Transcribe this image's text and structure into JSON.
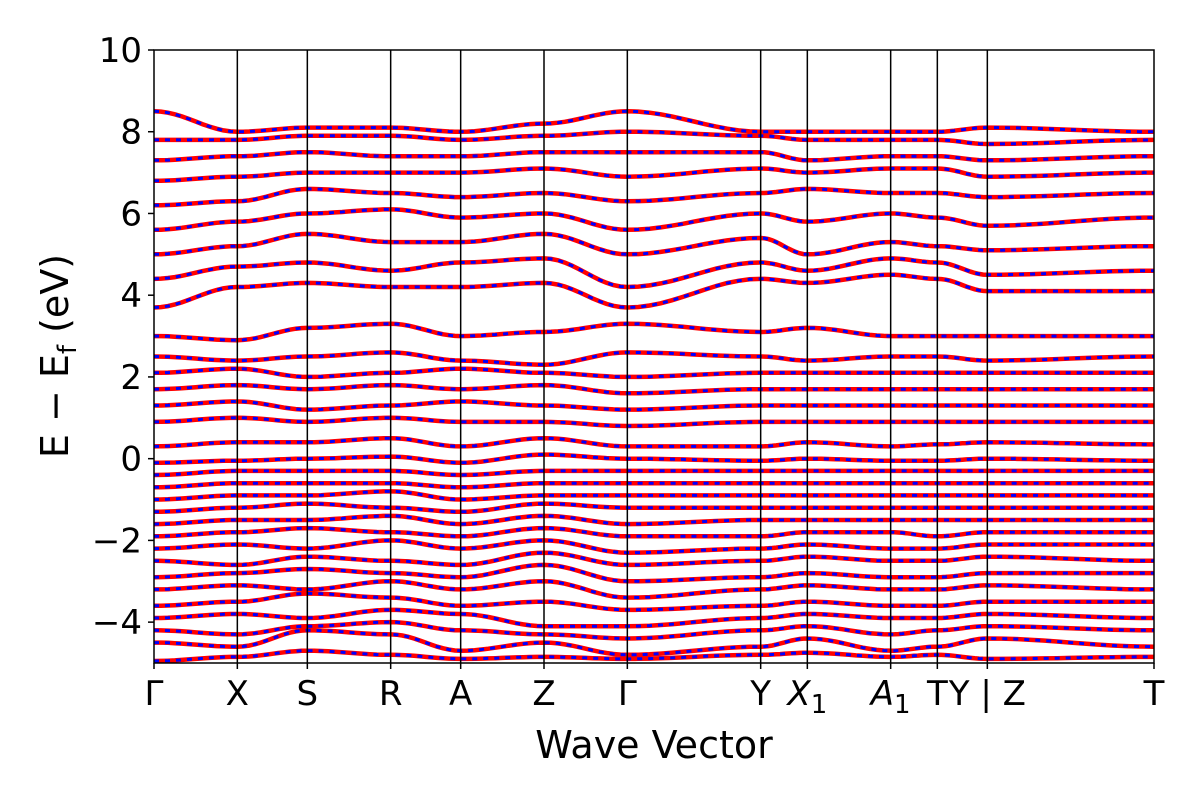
{
  "chart_data": {
    "type": "line",
    "xlabel": "Wave Vector",
    "ylabel": "E − E",
    "ylabel_subscript": "f",
    "ylabel_unit": " (eV)",
    "ylim": [
      -5,
      10
    ],
    "yticks": [
      -4,
      -2,
      0,
      2,
      4,
      6,
      8,
      10
    ],
    "ytick_labels": [
      "−4",
      "−2",
      "0",
      "2",
      "4",
      "6",
      "8",
      "10"
    ],
    "kpath": [
      {
        "label": "Γ",
        "sub": "",
        "x": 0.0
      },
      {
        "label": "X",
        "sub": "",
        "x": 0.5
      },
      {
        "label": "S",
        "sub": "",
        "x": 0.92
      },
      {
        "label": "R",
        "sub": "",
        "x": 1.42
      },
      {
        "label": "A",
        "sub": "",
        "x": 1.84
      },
      {
        "label": "Z",
        "sub": "",
        "x": 2.34
      },
      {
        "label": "Γ",
        "sub": "",
        "x": 2.84
      },
      {
        "label": "Y",
        "sub": "",
        "x": 3.64
      },
      {
        "label": "X",
        "sub": "1",
        "x": 3.92
      },
      {
        "label": "A",
        "sub": "1",
        "x": 4.42
      },
      {
        "label": "T",
        "sub": "",
        "x": 4.7
      },
      {
        "label": "Y | Z",
        "sub": "",
        "x": 5.0
      },
      {
        "label": "T",
        "sub": "",
        "x": 6.0
      }
    ],
    "xlim": [
      0,
      6.0
    ],
    "series": [
      {
        "color": "#ff0000",
        "style": "solid"
      },
      {
        "color": "#0000ff",
        "style": "dashed"
      }
    ],
    "bands": [
      [
        -4.95,
        -4.85,
        -4.7,
        -4.8,
        -4.9,
        -4.85,
        -4.9,
        -4.8,
        -4.75,
        -4.85,
        -4.8,
        -4.9,
        -4.85
      ],
      [
        -4.5,
        -4.6,
        -4.2,
        -4.3,
        -4.7,
        -4.5,
        -4.8,
        -4.6,
        -4.4,
        -4.7,
        -4.6,
        -4.4,
        -4.6
      ],
      [
        -4.2,
        -4.3,
        -4.1,
        -4.0,
        -4.2,
        -4.3,
        -4.4,
        -4.2,
        -4.1,
        -4.3,
        -4.2,
        -4.1,
        -4.2
      ],
      [
        -3.9,
        -3.8,
        -3.9,
        -3.7,
        -3.8,
        -4.1,
        -4.1,
        -3.9,
        -3.8,
        -3.9,
        -3.9,
        -3.8,
        -3.9
      ],
      [
        -3.6,
        -3.5,
        -3.3,
        -3.4,
        -3.6,
        -3.5,
        -3.7,
        -3.6,
        -3.5,
        -3.6,
        -3.6,
        -3.5,
        -3.5
      ],
      [
        -3.2,
        -3.1,
        -3.2,
        -3.0,
        -3.2,
        -3.0,
        -3.4,
        -3.2,
        -3.1,
        -3.2,
        -3.2,
        -3.1,
        -3.2
      ],
      [
        -2.9,
        -2.8,
        -2.7,
        -2.8,
        -2.9,
        -2.6,
        -3.0,
        -2.9,
        -2.8,
        -2.9,
        -2.9,
        -2.8,
        -2.8
      ],
      [
        -2.5,
        -2.6,
        -2.4,
        -2.5,
        -2.6,
        -2.3,
        -2.6,
        -2.5,
        -2.4,
        -2.5,
        -2.5,
        -2.4,
        -2.5
      ],
      [
        -2.2,
        -2.1,
        -2.2,
        -2.0,
        -2.2,
        -2.0,
        -2.3,
        -2.2,
        -2.1,
        -2.2,
        -2.2,
        -2.1,
        -2.1
      ],
      [
        -1.9,
        -1.8,
        -1.7,
        -1.8,
        -1.9,
        -1.7,
        -1.9,
        -1.9,
        -1.8,
        -1.8,
        -1.9,
        -1.8,
        -1.8
      ],
      [
        -1.6,
        -1.5,
        -1.5,
        -1.4,
        -1.6,
        -1.4,
        -1.6,
        -1.5,
        -1.5,
        -1.5,
        -1.5,
        -1.5,
        -1.5
      ],
      [
        -1.3,
        -1.2,
        -1.1,
        -1.2,
        -1.3,
        -1.1,
        -1.2,
        -1.2,
        -1.2,
        -1.2,
        -1.2,
        -1.2,
        -1.2
      ],
      [
        -1.0,
        -0.9,
        -0.9,
        -0.8,
        -1.0,
        -0.9,
        -0.9,
        -0.9,
        -0.9,
        -0.9,
        -0.9,
        -0.9,
        -0.9
      ],
      [
        -0.7,
        -0.6,
        -0.6,
        -0.6,
        -0.7,
        -0.6,
        -0.6,
        -0.6,
        -0.6,
        -0.6,
        -0.6,
        -0.6,
        -0.6
      ],
      [
        -0.4,
        -0.3,
        -0.3,
        -0.3,
        -0.4,
        -0.3,
        -0.3,
        -0.3,
        -0.3,
        -0.3,
        -0.3,
        -0.3,
        -0.3
      ],
      [
        -0.1,
        -0.05,
        0.0,
        0.05,
        -0.1,
        0.1,
        0.0,
        -0.05,
        0.0,
        -0.05,
        -0.05,
        0.0,
        -0.05
      ],
      [
        0.3,
        0.4,
        0.4,
        0.5,
        0.3,
        0.5,
        0.3,
        0.3,
        0.4,
        0.3,
        0.35,
        0.4,
        0.35
      ],
      [
        0.9,
        1.0,
        0.9,
        1.0,
        0.9,
        0.9,
        0.8,
        0.9,
        0.9,
        0.9,
        0.9,
        0.9,
        0.9
      ],
      [
        1.3,
        1.4,
        1.2,
        1.3,
        1.4,
        1.3,
        1.2,
        1.3,
        1.3,
        1.3,
        1.3,
        1.3,
        1.3
      ],
      [
        1.7,
        1.8,
        1.7,
        1.8,
        1.7,
        1.8,
        1.6,
        1.7,
        1.7,
        1.7,
        1.7,
        1.7,
        1.7
      ],
      [
        2.1,
        2.2,
        2.0,
        2.1,
        2.2,
        2.1,
        2.0,
        2.1,
        2.1,
        2.1,
        2.1,
        2.1,
        2.1
      ],
      [
        2.5,
        2.4,
        2.5,
        2.6,
        2.4,
        2.3,
        2.6,
        2.5,
        2.4,
        2.5,
        2.5,
        2.4,
        2.5
      ],
      [
        3.0,
        2.9,
        3.2,
        3.3,
        3.0,
        3.1,
        3.3,
        3.1,
        3.2,
        3.0,
        3.0,
        3.0,
        3.0
      ],
      [
        3.7,
        4.2,
        4.3,
        4.2,
        4.2,
        4.3,
        3.7,
        4.4,
        4.3,
        4.5,
        4.4,
        4.1,
        4.1
      ],
      [
        4.4,
        4.7,
        4.8,
        4.6,
        4.8,
        4.9,
        4.2,
        4.8,
        4.6,
        4.9,
        4.8,
        4.5,
        4.6
      ],
      [
        5.0,
        5.2,
        5.5,
        5.3,
        5.3,
        5.5,
        5.0,
        5.4,
        5.0,
        5.3,
        5.2,
        5.1,
        5.2
      ],
      [
        5.6,
        5.8,
        6.0,
        6.1,
        5.9,
        6.0,
        5.6,
        6.0,
        5.8,
        6.0,
        5.9,
        5.7,
        5.9
      ],
      [
        6.2,
        6.3,
        6.6,
        6.5,
        6.4,
        6.5,
        6.3,
        6.5,
        6.6,
        6.5,
        6.5,
        6.4,
        6.5
      ],
      [
        6.8,
        6.9,
        7.0,
        7.0,
        7.0,
        7.1,
        6.9,
        7.1,
        7.0,
        7.1,
        7.1,
        6.9,
        7.0
      ],
      [
        7.3,
        7.4,
        7.5,
        7.4,
        7.4,
        7.5,
        7.5,
        7.5,
        7.3,
        7.4,
        7.4,
        7.3,
        7.4
      ],
      [
        7.8,
        7.8,
        7.9,
        7.9,
        7.8,
        7.9,
        8.0,
        7.9,
        7.8,
        7.8,
        7.8,
        7.7,
        7.8
      ],
      [
        8.5,
        8.0,
        8.1,
        8.1,
        8.0,
        8.2,
        8.5,
        8.0,
        8.0,
        8.0,
        8.0,
        8.1,
        8.0
      ]
    ]
  }
}
